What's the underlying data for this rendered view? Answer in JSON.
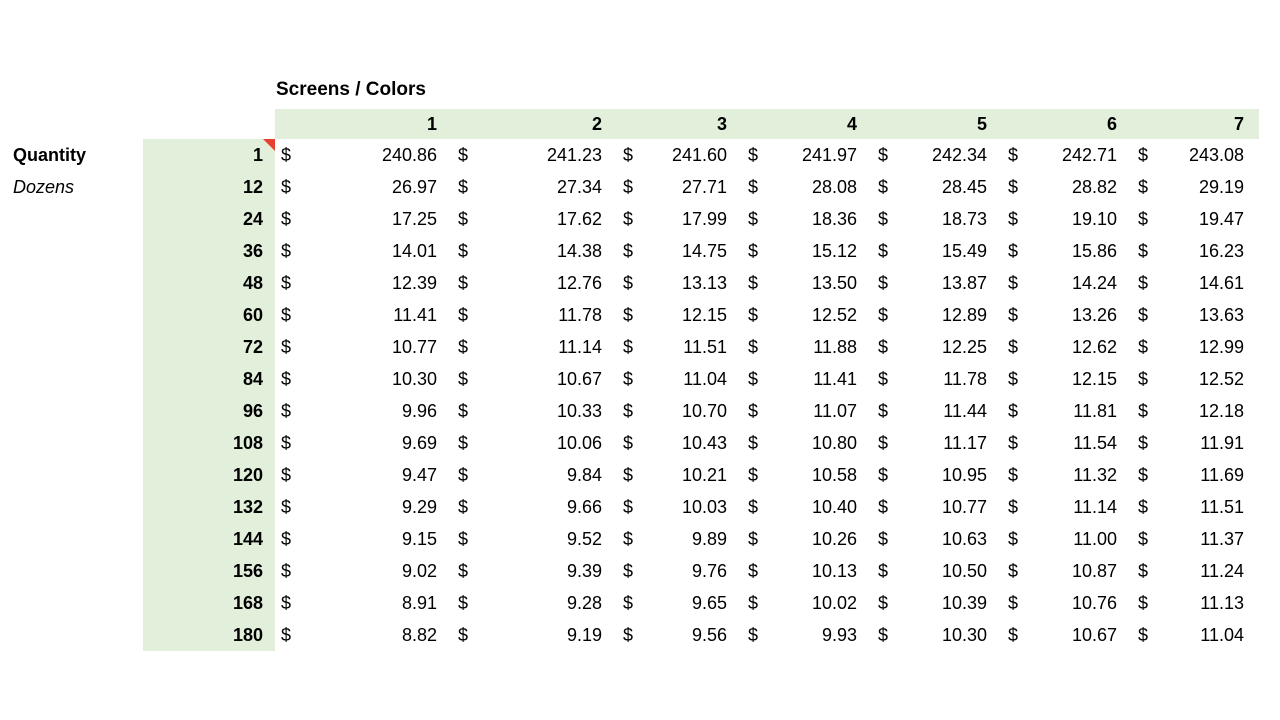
{
  "title": "Screens / Colors",
  "labels": {
    "quantity": "Quantity",
    "unit": "Dozens",
    "currency": "$"
  },
  "colors": {
    "background": "#ffffff",
    "text": "#000000",
    "header_fill": "#e2efda",
    "quantity_fill": "#e2efda",
    "comment_flag": "#e8402f"
  },
  "chart_data": {
    "type": "table",
    "title": "Screens / Colors",
    "row_axis_label": "Quantity",
    "row_axis_unit": "Dozens",
    "columns": [
      "1",
      "2",
      "3",
      "4",
      "5",
      "6",
      "7"
    ],
    "rows": [
      {
        "quantity": "1",
        "has_comment_flag": true,
        "values": [
          "240.86",
          "241.23",
          "241.60",
          "241.97",
          "242.34",
          "242.71",
          "243.08"
        ]
      },
      {
        "quantity": "12",
        "has_comment_flag": false,
        "values": [
          "26.97",
          "27.34",
          "27.71",
          "28.08",
          "28.45",
          "28.82",
          "29.19"
        ]
      },
      {
        "quantity": "24",
        "has_comment_flag": false,
        "values": [
          "17.25",
          "17.62",
          "17.99",
          "18.36",
          "18.73",
          "19.10",
          "19.47"
        ]
      },
      {
        "quantity": "36",
        "has_comment_flag": false,
        "values": [
          "14.01",
          "14.38",
          "14.75",
          "15.12",
          "15.49",
          "15.86",
          "16.23"
        ]
      },
      {
        "quantity": "48",
        "has_comment_flag": false,
        "values": [
          "12.39",
          "12.76",
          "13.13",
          "13.50",
          "13.87",
          "14.24",
          "14.61"
        ]
      },
      {
        "quantity": "60",
        "has_comment_flag": false,
        "values": [
          "11.41",
          "11.78",
          "12.15",
          "12.52",
          "12.89",
          "13.26",
          "13.63"
        ]
      },
      {
        "quantity": "72",
        "has_comment_flag": false,
        "values": [
          "10.77",
          "11.14",
          "11.51",
          "11.88",
          "12.25",
          "12.62",
          "12.99"
        ]
      },
      {
        "quantity": "84",
        "has_comment_flag": false,
        "values": [
          "10.30",
          "10.67",
          "11.04",
          "11.41",
          "11.78",
          "12.15",
          "12.52"
        ]
      },
      {
        "quantity": "96",
        "has_comment_flag": false,
        "values": [
          "9.96",
          "10.33",
          "10.70",
          "11.07",
          "11.44",
          "11.81",
          "12.18"
        ]
      },
      {
        "quantity": "108",
        "has_comment_flag": false,
        "values": [
          "9.69",
          "10.06",
          "10.43",
          "10.80",
          "11.17",
          "11.54",
          "11.91"
        ]
      },
      {
        "quantity": "120",
        "has_comment_flag": false,
        "values": [
          "9.47",
          "9.84",
          "10.21",
          "10.58",
          "10.95",
          "11.32",
          "11.69"
        ]
      },
      {
        "quantity": "132",
        "has_comment_flag": false,
        "values": [
          "9.29",
          "9.66",
          "10.03",
          "10.40",
          "10.77",
          "11.14",
          "11.51"
        ]
      },
      {
        "quantity": "144",
        "has_comment_flag": false,
        "values": [
          "9.15",
          "9.52",
          "9.89",
          "10.26",
          "10.63",
          "11.00",
          "11.37"
        ]
      },
      {
        "quantity": "156",
        "has_comment_flag": false,
        "values": [
          "9.02",
          "9.39",
          "9.76",
          "10.13",
          "10.50",
          "10.87",
          "11.24"
        ]
      },
      {
        "quantity": "168",
        "has_comment_flag": false,
        "values": [
          "8.91",
          "9.28",
          "9.65",
          "10.02",
          "10.39",
          "10.76",
          "11.13"
        ]
      },
      {
        "quantity": "180",
        "has_comment_flag": false,
        "values": [
          "8.82",
          "9.19",
          "9.56",
          "9.93",
          "10.30",
          "10.67",
          "11.04"
        ]
      }
    ]
  }
}
